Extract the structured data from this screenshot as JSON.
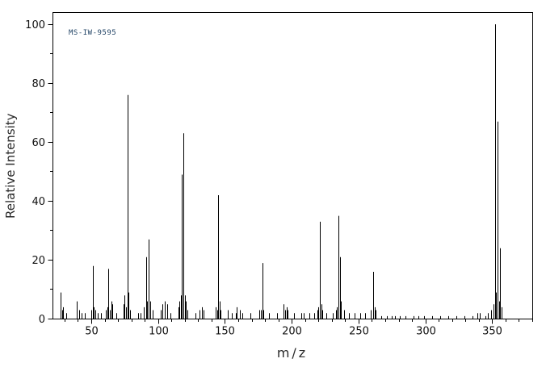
{
  "chart_data": {
    "type": "bar",
    "variant": "mass-spectrum-stick-plot",
    "title": "",
    "annotation": "MS-IW-9595",
    "xlabel": "m/z",
    "ylabel": "Relative Intensity",
    "xlim": [
      21,
      380
    ],
    "ylim": [
      0,
      104
    ],
    "x_major_ticks": [
      50,
      100,
      150,
      200,
      250,
      300,
      350
    ],
    "x_minor_step": 10,
    "y_major_ticks": [
      0,
      20,
      40,
      60,
      80,
      100
    ],
    "y_minor_step": 10,
    "grid": false,
    "legend": "none",
    "colors": {
      "background": "#ffffff",
      "axis": "#000000",
      "peak": "#000000",
      "tick_label": "#111111",
      "axis_label": "#2a2a2a",
      "annotation": "#224466"
    },
    "peaks": [
      [
        27,
        9
      ],
      [
        28,
        3
      ],
      [
        29,
        4
      ],
      [
        31,
        2
      ],
      [
        39,
        6
      ],
      [
        41,
        3
      ],
      [
        43,
        2
      ],
      [
        45,
        2
      ],
      [
        50,
        3
      ],
      [
        51,
        18
      ],
      [
        52,
        4
      ],
      [
        53,
        3
      ],
      [
        55,
        2
      ],
      [
        57,
        2
      ],
      [
        61,
        3
      ],
      [
        62,
        4
      ],
      [
        63,
        17
      ],
      [
        64,
        3
      ],
      [
        65,
        6
      ],
      [
        66,
        5
      ],
      [
        69,
        2
      ],
      [
        74,
        5
      ],
      [
        75,
        8
      ],
      [
        76,
        4
      ],
      [
        77,
        76
      ],
      [
        78,
        9
      ],
      [
        79,
        3
      ],
      [
        85,
        2
      ],
      [
        87,
        2
      ],
      [
        89,
        4
      ],
      [
        91,
        21
      ],
      [
        92,
        6
      ],
      [
        93,
        27
      ],
      [
        94,
        6
      ],
      [
        96,
        3
      ],
      [
        102,
        3
      ],
      [
        103,
        5
      ],
      [
        105,
        6
      ],
      [
        107,
        5
      ],
      [
        109,
        2
      ],
      [
        115,
        4
      ],
      [
        116,
        6
      ],
      [
        117,
        8
      ],
      [
        118,
        49
      ],
      [
        119,
        63
      ],
      [
        120,
        8
      ],
      [
        121,
        6
      ],
      [
        122,
        3
      ],
      [
        128,
        2
      ],
      [
        131,
        3
      ],
      [
        133,
        4
      ],
      [
        134,
        3
      ],
      [
        143,
        4
      ],
      [
        144,
        3
      ],
      [
        145,
        42
      ],
      [
        146,
        6
      ],
      [
        147,
        3
      ],
      [
        152,
        3
      ],
      [
        155,
        2
      ],
      [
        158,
        2
      ],
      [
        159,
        4
      ],
      [
        161,
        3
      ],
      [
        163,
        2
      ],
      [
        169,
        2
      ],
      [
        176,
        3
      ],
      [
        177,
        3
      ],
      [
        178,
        19
      ],
      [
        179,
        3
      ],
      [
        183,
        2
      ],
      [
        189,
        2
      ],
      [
        194,
        5
      ],
      [
        195,
        3
      ],
      [
        196,
        4
      ],
      [
        197,
        3
      ],
      [
        202,
        2
      ],
      [
        207,
        2
      ],
      [
        209,
        2
      ],
      [
        213,
        2
      ],
      [
        217,
        2
      ],
      [
        219,
        3
      ],
      [
        220,
        4
      ],
      [
        221,
        33
      ],
      [
        222,
        5
      ],
      [
        223,
        3
      ],
      [
        226,
        2
      ],
      [
        231,
        2
      ],
      [
        233,
        3
      ],
      [
        234,
        4
      ],
      [
        235,
        35
      ],
      [
        236,
        21
      ],
      [
        237,
        6
      ],
      [
        239,
        3
      ],
      [
        243,
        2
      ],
      [
        247,
        2
      ],
      [
        251,
        2
      ],
      [
        255,
        2
      ],
      [
        259,
        3
      ],
      [
        261,
        16
      ],
      [
        262,
        4
      ],
      [
        263,
        3
      ],
      [
        267,
        1
      ],
      [
        271,
        1
      ],
      [
        275,
        1
      ],
      [
        277,
        1
      ],
      [
        281,
        1
      ],
      [
        285,
        1
      ],
      [
        291,
        1
      ],
      [
        295,
        1
      ],
      [
        299,
        1
      ],
      [
        305,
        1
      ],
      [
        311,
        1
      ],
      [
        317,
        1
      ],
      [
        323,
        1
      ],
      [
        329,
        1
      ],
      [
        335,
        1
      ],
      [
        339,
        2
      ],
      [
        341,
        2
      ],
      [
        345,
        1
      ],
      [
        347,
        2
      ],
      [
        349,
        3
      ],
      [
        351,
        5
      ],
      [
        352,
        100
      ],
      [
        353,
        9
      ],
      [
        354,
        67
      ],
      [
        355,
        6
      ],
      [
        356,
        24
      ],
      [
        357,
        4
      ]
    ]
  }
}
